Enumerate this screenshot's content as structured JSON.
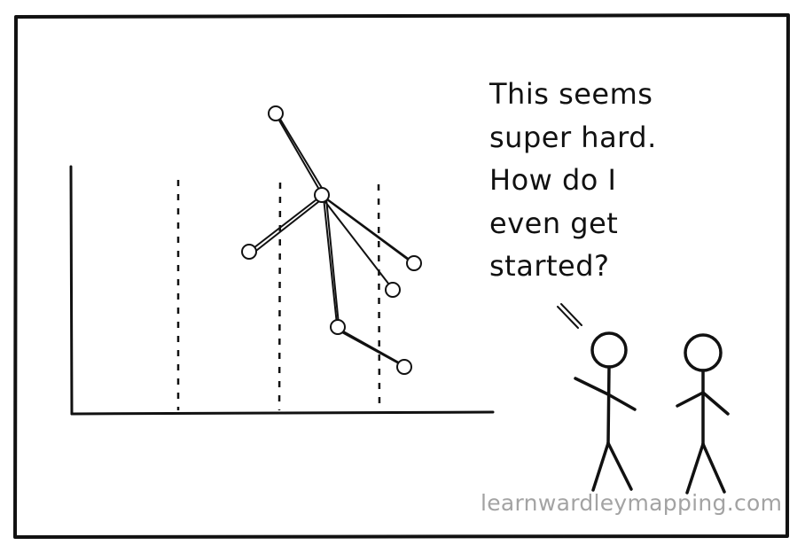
{
  "speech": {
    "lines": [
      "This seems",
      "super hard.",
      "How do I",
      "even get",
      "started?"
    ]
  },
  "watermark": "learnwardleymapping.com",
  "colors": {
    "ink": "#111111",
    "watermark": "#a3a3a3",
    "background": "#ffffff"
  },
  "icons": [
    "stick-figure-speaker",
    "stick-figure-listener",
    "map-node"
  ]
}
